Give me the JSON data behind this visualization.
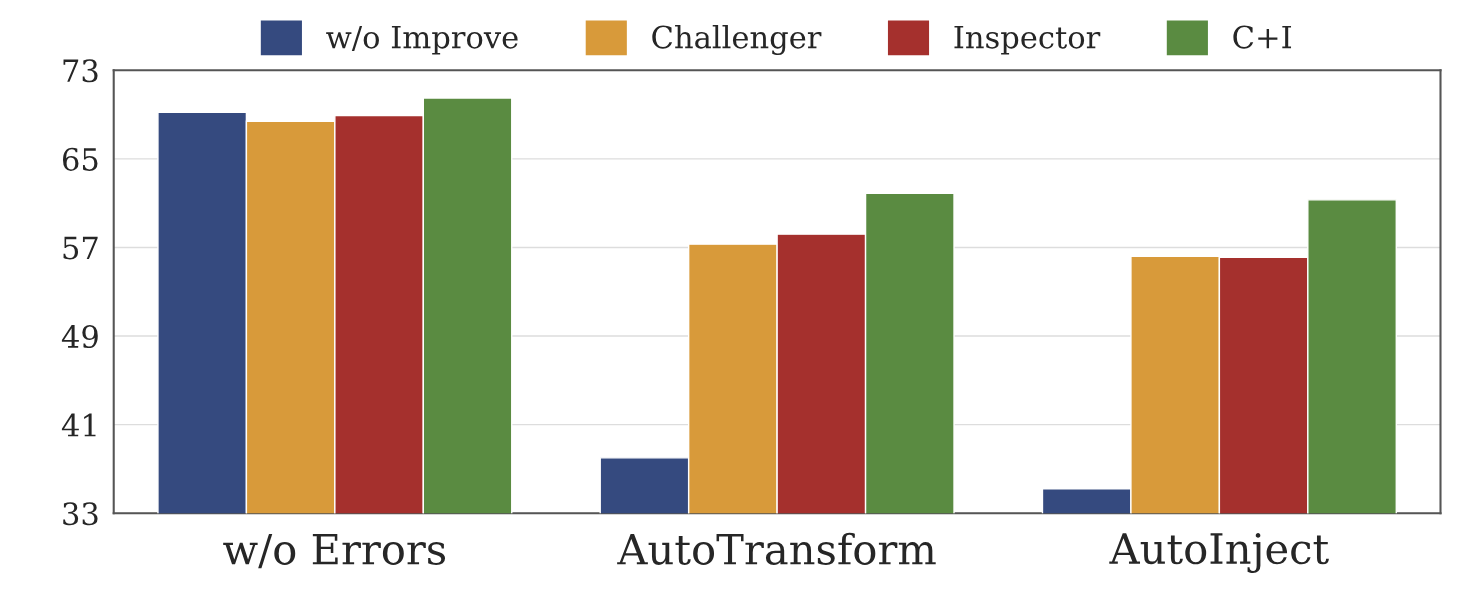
{
  "chart_data": {
    "type": "bar",
    "categories": [
      "w/o Errors",
      "AutoTransform",
      "AutoInject"
    ],
    "series": [
      {
        "name": "w/o Improve",
        "color": "#354a7f",
        "values": [
          69.2,
          38.0,
          35.2
        ]
      },
      {
        "name": "Challenger",
        "color": "#d89a3a",
        "values": [
          68.4,
          57.3,
          56.2
        ]
      },
      {
        "name": "Inspector",
        "color": "#a5302d",
        "values": [
          68.9,
          58.2,
          56.1
        ]
      },
      {
        "name": "C+I",
        "color": "#5a8b41",
        "values": [
          70.5,
          61.9,
          61.3
        ]
      }
    ],
    "ylim": [
      33,
      73
    ],
    "yticks": [
      33,
      41,
      49,
      57,
      65,
      73
    ],
    "grid": "y",
    "legend": "top"
  }
}
